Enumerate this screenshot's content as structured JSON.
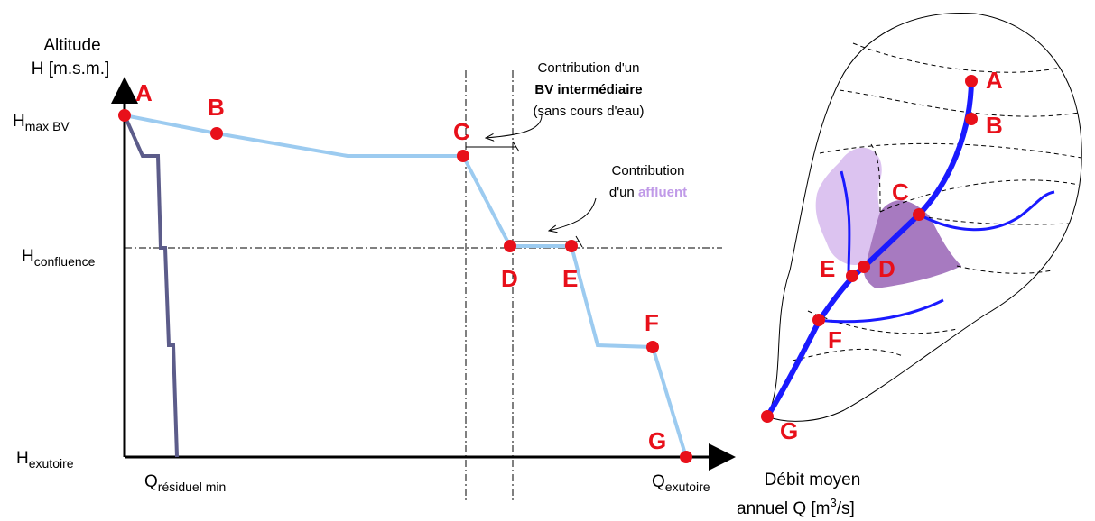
{
  "y_axis": {
    "title": [
      "Altitude",
      "H [m.s.m.]"
    ],
    "levels": [
      {
        "main": "H",
        "sub": "max BV"
      },
      {
        "main": "H",
        "sub": "confluence"
      },
      {
        "main": "H",
        "sub": "exutoire"
      }
    ]
  },
  "x_axis": {
    "labels": [
      {
        "main": "Q",
        "sub": "résiduel min"
      },
      {
        "main": "Q",
        "sub": "exutoire"
      }
    ],
    "title": [
      "Débit moyen",
      "annuel Q [m",
      "3",
      "/s]"
    ]
  },
  "profile_points": [
    "A",
    "B",
    "C",
    "D",
    "E",
    "F",
    "G"
  ],
  "map_points": [
    "A",
    "B",
    "C",
    "D",
    "E",
    "F",
    "G"
  ],
  "annotations": {
    "intermediate": [
      "Contribution d'un",
      "BV intermédiaire",
      "(sans cours d'eau)"
    ],
    "tributary": [
      "Contribution",
      "d'un ",
      "affluent"
    ]
  }
}
